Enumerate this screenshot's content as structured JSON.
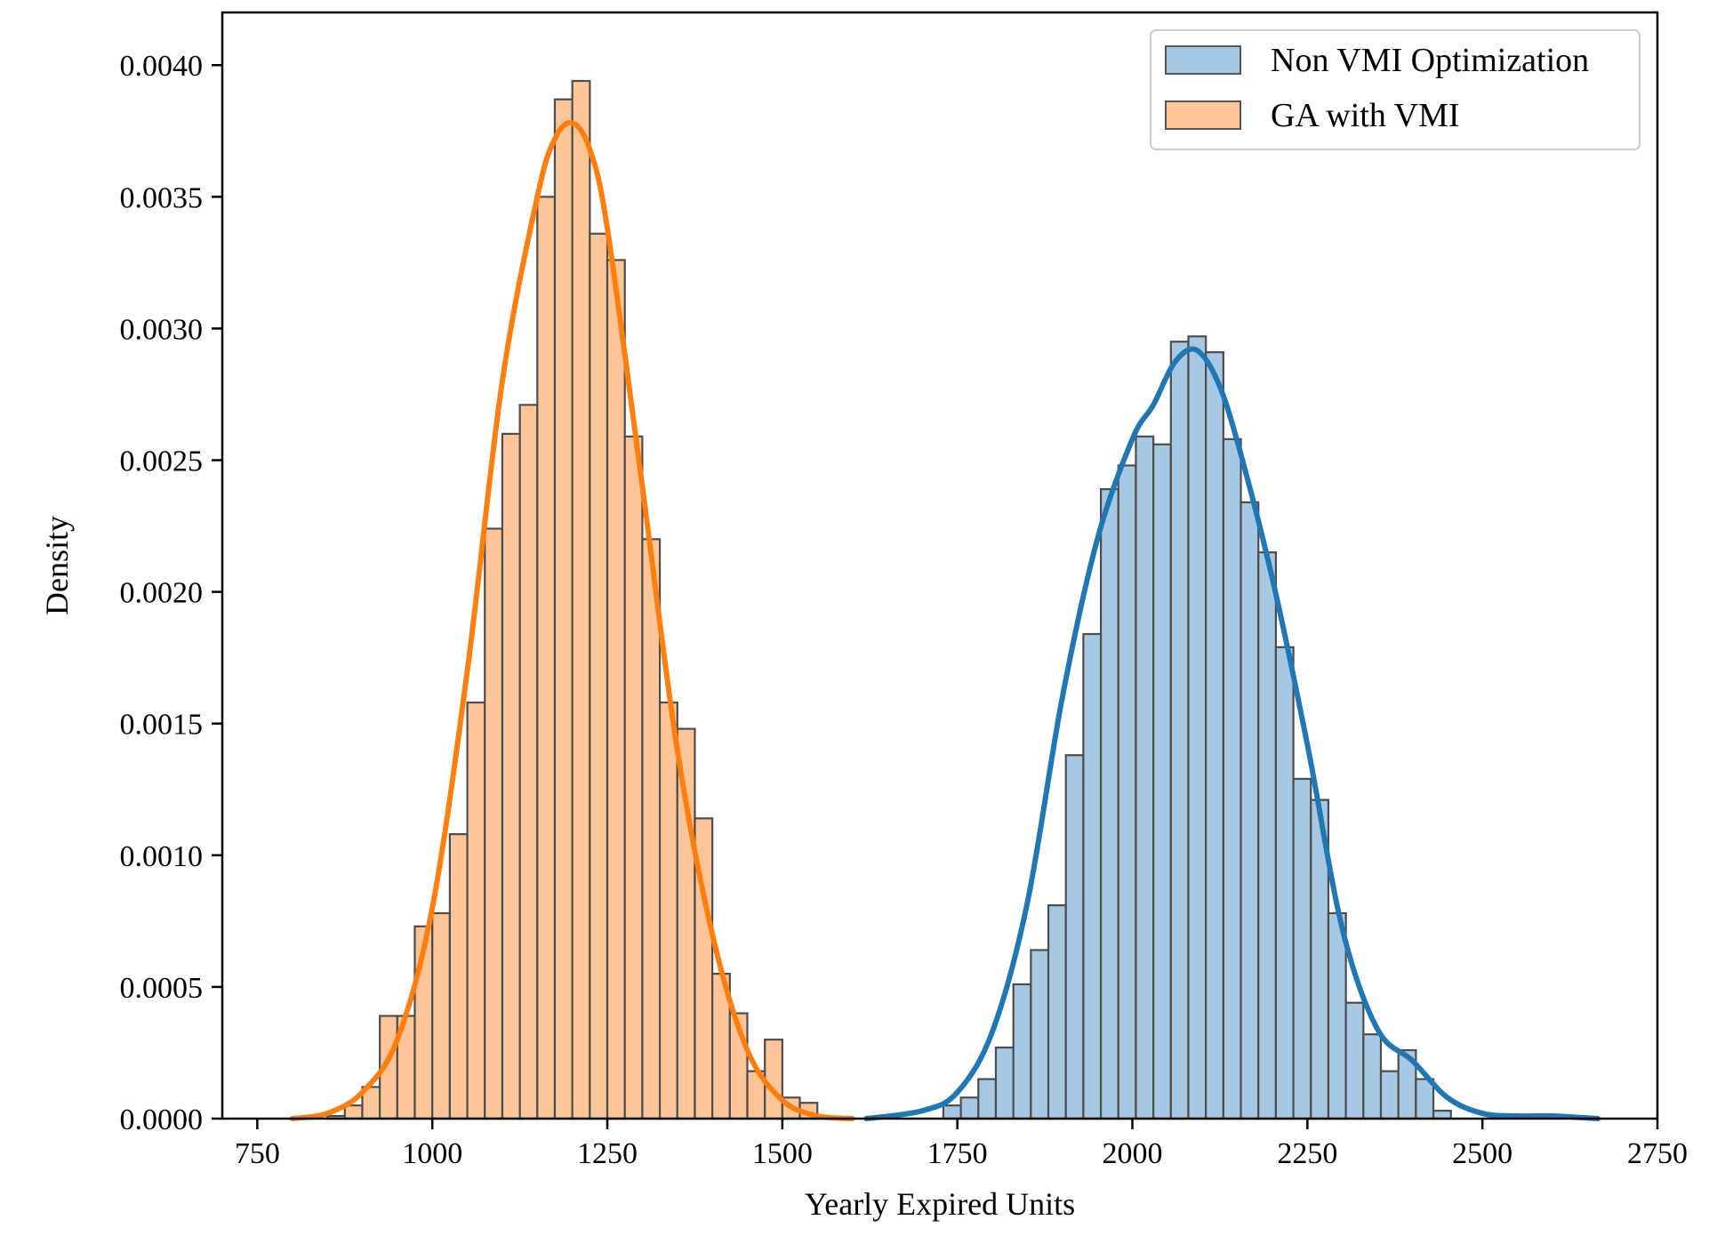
{
  "chart_data": {
    "type": "histogram",
    "xlabel": "Yearly Expired Units",
    "ylabel": "Density",
    "xlim": [
      700,
      2750
    ],
    "ylim": [
      0,
      0.0042
    ],
    "xticks": [
      750,
      1000,
      1250,
      1500,
      1750,
      2000,
      2250,
      2500,
      2750
    ],
    "yticks": [
      0.0,
      0.0005,
      0.001,
      0.0015,
      0.002,
      0.0025,
      0.003,
      0.0035,
      0.004
    ],
    "ytick_labels": [
      "0.0000",
      "0.0005",
      "0.0010",
      "0.0015",
      "0.0020",
      "0.0025",
      "0.0030",
      "0.0035",
      "0.0040"
    ],
    "legend_position": "top-right",
    "grid": false,
    "series": [
      {
        "name": "Non VMI Optimization",
        "bar_color": "#a6c8e2",
        "line_color": "#1f77b4",
        "bin_edges": [
          1730,
          1755,
          1780,
          1805,
          1830,
          1855,
          1880,
          1905,
          1930,
          1955,
          1980,
          2005,
          2030,
          2055,
          2080,
          2105,
          2130,
          2155,
          2180,
          2205,
          2230,
          2255,
          2280,
          2305,
          2330,
          2355,
          2380,
          2405,
          2430,
          2455,
          2480,
          2505
        ],
        "densities": [
          5e-05,
          8e-05,
          0.00015,
          0.00027,
          0.00051,
          0.00064,
          0.00081,
          0.00138,
          0.00184,
          0.00239,
          0.00248,
          0.00259,
          0.00256,
          0.00295,
          0.00297,
          0.00291,
          0.00258,
          0.00234,
          0.00215,
          0.00179,
          0.00129,
          0.00121,
          0.00078,
          0.00044,
          0.00032,
          0.00018,
          0.00026,
          0.00015,
          3e-05,
          0.0,
          0.0
        ],
        "kde_x": [
          1620,
          1700,
          1750,
          1800,
          1850,
          1900,
          1950,
          2000,
          2030,
          2060,
          2090,
          2120,
          2150,
          2200,
          2250,
          2300,
          2350,
          2400,
          2450,
          2500,
          2550,
          2600,
          2665
        ],
        "kde_y": [
          0.0,
          3e-05,
          0.0001,
          0.00033,
          0.00082,
          0.0016,
          0.0022,
          0.00258,
          0.00271,
          0.00287,
          0.00292,
          0.00281,
          0.00257,
          0.00205,
          0.00142,
          0.00072,
          0.00034,
          0.00022,
          8e-05,
          2e-05,
          1e-05,
          1e-05,
          0.0
        ]
      },
      {
        "name": "GA with VMI",
        "bar_color": "#ffc596",
        "line_color": "#ff7f0e",
        "bin_edges": [
          850,
          875,
          900,
          925,
          950,
          975,
          1000,
          1025,
          1050,
          1075,
          1100,
          1125,
          1150,
          1175,
          1200,
          1225,
          1250,
          1275,
          1300,
          1325,
          1350,
          1375,
          1400,
          1425,
          1450,
          1475,
          1500,
          1525,
          1550
        ],
        "densities": [
          1e-05,
          5e-05,
          0.00012,
          0.00039,
          0.00039,
          0.00073,
          0.00078,
          0.00108,
          0.00158,
          0.00224,
          0.0026,
          0.00271,
          0.0035,
          0.00387,
          0.00394,
          0.00336,
          0.00326,
          0.00259,
          0.0022,
          0.00158,
          0.00148,
          0.00114,
          0.00055,
          0.0004,
          0.00018,
          0.0003,
          8e-05,
          6e-05
        ],
        "kde_x": [
          800,
          850,
          900,
          950,
          1000,
          1050,
          1100,
          1150,
          1175,
          1200,
          1225,
          1250,
          1300,
          1350,
          1400,
          1450,
          1500,
          1550,
          1600
        ],
        "kde_y": [
          0.0,
          2e-05,
          0.0001,
          0.0003,
          0.0008,
          0.0017,
          0.0028,
          0.0035,
          0.00372,
          0.00378,
          0.00368,
          0.00338,
          0.0024,
          0.0014,
          0.0007,
          0.00026,
          7e-05,
          1e-05,
          0.0
        ]
      }
    ]
  }
}
